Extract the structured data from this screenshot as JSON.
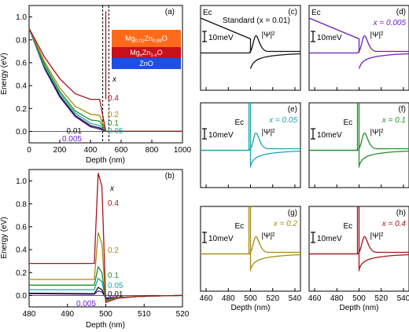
{
  "colors": {
    "x0005": "#6a1fc2",
    "x001": "#111111",
    "x005": "#1aa3b0",
    "x01": "#1f8f2a",
    "x02": "#a88a10",
    "x04": "#a3151b",
    "mgzno_layer": "#ff6a1a",
    "mgxzn_layer": "#c8101b",
    "zno_layer": "#1f4fe0"
  },
  "chart_data": [
    {
      "panel": "(a)",
      "type": "line",
      "xlabel": "Depth (nm)",
      "ylabel": "Energy (eV)",
      "xlim": [
        0,
        1000
      ],
      "ylim": [
        -0.1,
        1.1
      ],
      "xticks": [
        "0",
        "200",
        "400",
        "600",
        "800",
        "1000"
      ],
      "yticks": [
        "0.0",
        "0.2",
        "0.4",
        "0.6",
        "0.8",
        "1.0"
      ],
      "legend_title": "x",
      "series_labels": [
        "0.4",
        "0.2",
        "0.1",
        "0.05",
        "0.01",
        "0.005"
      ],
      "layers": [
        "Mg0.01Zn0.99O",
        "MgxZn1-xO",
        "ZnO"
      ],
      "series": [
        {
          "name": "0.005",
          "x": [
            0,
            100,
            200,
            300,
            400,
            460,
            500,
            550,
            1000
          ],
          "y": [
            0.9,
            0.55,
            0.3,
            0.13,
            0.04,
            0.02,
            0.0,
            0.0,
            0.0
          ]
        },
        {
          "name": "0.01",
          "x": [
            0,
            100,
            200,
            300,
            400,
            460,
            500,
            550,
            1000
          ],
          "y": [
            0.9,
            0.56,
            0.31,
            0.14,
            0.05,
            0.03,
            0.0,
            0.0,
            0.0
          ]
        },
        {
          "name": "0.05",
          "x": [
            0,
            100,
            200,
            300,
            400,
            460,
            500,
            550,
            1000
          ],
          "y": [
            0.9,
            0.57,
            0.33,
            0.16,
            0.07,
            0.05,
            0.0,
            0.0,
            0.0
          ]
        },
        {
          "name": "0.1",
          "x": [
            0,
            100,
            200,
            300,
            400,
            460,
            500,
            550,
            1000
          ],
          "y": [
            0.9,
            0.59,
            0.35,
            0.18,
            0.1,
            0.09,
            0.0,
            0.0,
            0.0
          ]
        },
        {
          "name": "0.2",
          "x": [
            0,
            100,
            200,
            300,
            400,
            460,
            500,
            550,
            1000
          ],
          "y": [
            0.9,
            0.61,
            0.38,
            0.22,
            0.15,
            0.14,
            0.0,
            0.0,
            0.0
          ]
        },
        {
          "name": "0.4",
          "x": [
            0,
            100,
            200,
            300,
            400,
            460,
            500,
            550,
            1000
          ],
          "y": [
            0.9,
            0.65,
            0.46,
            0.33,
            0.28,
            0.28,
            0.0,
            0.0,
            0.0
          ]
        }
      ]
    },
    {
      "panel": "(b)",
      "type": "line",
      "xlabel": "Depth (nm)",
      "ylabel": "Energy (eV)",
      "xlim": [
        480,
        520
      ],
      "ylim": [
        -0.1,
        1.1
      ],
      "xticks": [
        "480",
        "490",
        "500",
        "510",
        "520"
      ],
      "yticks": [
        "0.0",
        "0.2",
        "0.4",
        "0.6",
        "0.8",
        "1.0"
      ],
      "legend_title": "x",
      "series_labels": [
        "0.4",
        "0.2",
        "0.1",
        "0.05",
        "0.01",
        "0.005"
      ],
      "series": [
        {
          "name": "0.005",
          "x": [
            480,
            497,
            498,
            499,
            500,
            503,
            508,
            512,
            520
          ],
          "y": [
            0.015,
            0.01,
            0.04,
            0.03,
            -0.02,
            -0.015,
            -0.01,
            -0.005,
            0.0
          ]
        },
        {
          "name": "0.01",
          "x": [
            480,
            497,
            498,
            499,
            500,
            503,
            508,
            512,
            520
          ],
          "y": [
            0.02,
            0.015,
            0.07,
            0.05,
            -0.03,
            -0.02,
            -0.01,
            -0.005,
            0.0
          ]
        },
        {
          "name": "0.05",
          "x": [
            480,
            497,
            498,
            499,
            500,
            503,
            508,
            512,
            520
          ],
          "y": [
            0.05,
            0.05,
            0.15,
            0.12,
            -0.04,
            -0.02,
            -0.01,
            -0.005,
            0.0
          ]
        },
        {
          "name": "0.1",
          "x": [
            480,
            497,
            498,
            499,
            500,
            503,
            508,
            512,
            520
          ],
          "y": [
            0.09,
            0.09,
            0.25,
            0.2,
            -0.045,
            -0.02,
            -0.01,
            -0.005,
            0.0
          ]
        },
        {
          "name": "0.2",
          "x": [
            480,
            497,
            498,
            499,
            500,
            503,
            508,
            512,
            520
          ],
          "y": [
            0.14,
            0.14,
            0.55,
            0.45,
            -0.05,
            -0.02,
            -0.01,
            -0.005,
            0.0
          ]
        },
        {
          "name": "0.4",
          "x": [
            480,
            497,
            498,
            499,
            500,
            503,
            508,
            512,
            520
          ],
          "y": [
            0.28,
            0.28,
            1.07,
            0.95,
            -0.06,
            -0.025,
            -0.01,
            -0.005,
            0.0
          ]
        }
      ]
    },
    {
      "panel": "(c)",
      "type": "line",
      "title": "Standard (x = 0.01)",
      "x_value_label": "",
      "xlim": [
        455,
        545
      ],
      "scale_bar": "10meV",
      "band_label": "Ec",
      "wave_label": "|Ψ|²"
    },
    {
      "panel": "(d)",
      "type": "line",
      "title": "",
      "x_value_label": "x = 0.005",
      "xlim": [
        455,
        545
      ],
      "scale_bar": "10meV",
      "band_label": "Ec",
      "wave_label": "|Ψ|²"
    },
    {
      "panel": "(e)",
      "type": "line",
      "title": "",
      "x_value_label": "x = 0.05",
      "xlim": [
        455,
        545
      ],
      "scale_bar": "10meV",
      "band_label": "Ec",
      "wave_label": "|Ψ|²"
    },
    {
      "panel": "(f)",
      "type": "line",
      "title": "",
      "x_value_label": "x = 0.1",
      "xlim": [
        455,
        545
      ],
      "scale_bar": "10meV",
      "band_label": "Ec",
      "wave_label": "|Ψ|²"
    },
    {
      "panel": "(g)",
      "type": "line",
      "title": "",
      "x_value_label": "x = 0.2",
      "xlim": [
        455,
        545
      ],
      "xticks": [
        "460",
        "480",
        "500",
        "520",
        "540"
      ],
      "xlabel": "Depth (nm)",
      "scale_bar": "10meV",
      "band_label": "Ec",
      "wave_label": "|Ψ|²"
    },
    {
      "panel": "(h)",
      "type": "line",
      "title": "",
      "x_value_label": "x = 0.4",
      "xlim": [
        455,
        545
      ],
      "xticks": [
        "460",
        "480",
        "500",
        "520",
        "540"
      ],
      "xlabel": "Depth (nm)",
      "scale_bar": "10meV",
      "band_label": "Ec",
      "wave_label": "|Ψ|²"
    }
  ]
}
